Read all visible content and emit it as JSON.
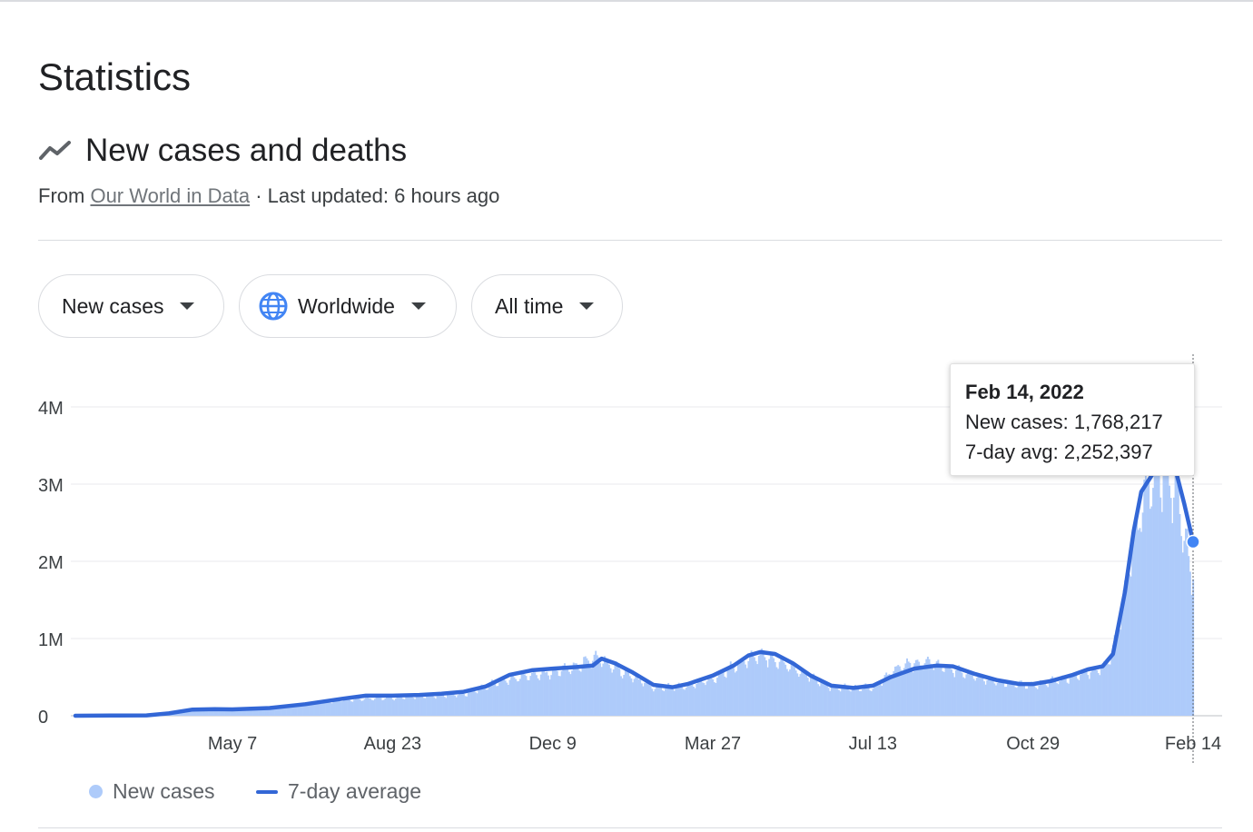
{
  "header": {
    "title": "Statistics",
    "subtitle": "New cases and deaths",
    "source_prefix": "From",
    "source_link": "Our World in Data",
    "updated": "· Last updated: 6 hours ago",
    "trend_icon": "trending-up-icon"
  },
  "filters": {
    "metric": "New cases",
    "region": "Worldwide",
    "range": "All time"
  },
  "legend": {
    "bars": "New cases",
    "line": "7-day average"
  },
  "tooltip": {
    "date": "Feb 14, 2022",
    "cases_label": "New cases:",
    "cases_value": "1,768,217",
    "avg_label": "7-day avg:",
    "avg_value": "2,252,397"
  },
  "colors": {
    "bars": "#aecbfa",
    "line": "#3367d6",
    "marker": "#4285f4",
    "grid": "#e8eaed"
  },
  "chart_data": {
    "type": "bar",
    "title": "New cases and deaths",
    "x_range": [
      "2020-01-22",
      "2022-02-14"
    ],
    "ylim": [
      0,
      4000000
    ],
    "y_ticks": [
      0,
      1000000,
      2000000,
      3000000,
      4000000
    ],
    "y_tick_labels": [
      "0",
      "1M",
      "2M",
      "3M",
      "4M"
    ],
    "x_ticks": [
      {
        "date": "2020-05-07",
        "label": "May 7"
      },
      {
        "date": "2020-08-23",
        "label": "Aug 23"
      },
      {
        "date": "2020-12-09",
        "label": "Dec 9"
      },
      {
        "date": "2021-03-27",
        "label": "Mar 27"
      },
      {
        "date": "2021-07-13",
        "label": "Jul 13"
      },
      {
        "date": "2021-10-29",
        "label": "Oct 29"
      },
      {
        "date": "2022-02-14",
        "label": "Feb 14"
      }
    ],
    "grid": true,
    "legend_position": "bottom-left",
    "series": [
      {
        "name": "7-day average",
        "style": "line",
        "points": [
          [
            "2020-01-22",
            0
          ],
          [
            "2020-02-15",
            2000
          ],
          [
            "2020-03-10",
            5000
          ],
          [
            "2020-03-25",
            30000
          ],
          [
            "2020-04-10",
            80000
          ],
          [
            "2020-04-25",
            85000
          ],
          [
            "2020-05-07",
            82000
          ],
          [
            "2020-06-01",
            100000
          ],
          [
            "2020-06-25",
            150000
          ],
          [
            "2020-07-20",
            220000
          ],
          [
            "2020-08-05",
            260000
          ],
          [
            "2020-08-23",
            260000
          ],
          [
            "2020-09-10",
            270000
          ],
          [
            "2020-09-25",
            285000
          ],
          [
            "2020-10-10",
            310000
          ],
          [
            "2020-10-25",
            380000
          ],
          [
            "2020-11-10",
            530000
          ],
          [
            "2020-11-25",
            590000
          ],
          [
            "2020-12-09",
            610000
          ],
          [
            "2020-12-25",
            630000
          ],
          [
            "2021-01-05",
            650000
          ],
          [
            "2021-01-11",
            740000
          ],
          [
            "2021-01-20",
            680000
          ],
          [
            "2021-02-01",
            560000
          ],
          [
            "2021-02-15",
            400000
          ],
          [
            "2021-02-28",
            370000
          ],
          [
            "2021-03-10",
            410000
          ],
          [
            "2021-03-27",
            520000
          ],
          [
            "2021-04-10",
            650000
          ],
          [
            "2021-04-20",
            780000
          ],
          [
            "2021-04-28",
            825000
          ],
          [
            "2021-05-08",
            800000
          ],
          [
            "2021-05-20",
            680000
          ],
          [
            "2021-06-01",
            520000
          ],
          [
            "2021-06-15",
            390000
          ],
          [
            "2021-06-30",
            360000
          ],
          [
            "2021-07-13",
            390000
          ],
          [
            "2021-07-25",
            500000
          ],
          [
            "2021-08-10",
            610000
          ],
          [
            "2021-08-25",
            650000
          ],
          [
            "2021-09-05",
            640000
          ],
          [
            "2021-09-20",
            540000
          ],
          [
            "2021-10-05",
            460000
          ],
          [
            "2021-10-20",
            410000
          ],
          [
            "2021-10-29",
            410000
          ],
          [
            "2021-11-10",
            450000
          ],
          [
            "2021-11-25",
            530000
          ],
          [
            "2021-12-05",
            600000
          ],
          [
            "2021-12-15",
            640000
          ],
          [
            "2021-12-22",
            800000
          ],
          [
            "2021-12-30",
            1600000
          ],
          [
            "2022-01-05",
            2400000
          ],
          [
            "2022-01-10",
            2900000
          ],
          [
            "2022-01-15",
            3050000
          ],
          [
            "2022-01-20",
            3200000
          ],
          [
            "2022-01-26",
            3320000
          ],
          [
            "2022-02-02",
            3200000
          ],
          [
            "2022-02-08",
            2750000
          ],
          [
            "2022-02-14",
            2252397
          ]
        ]
      },
      {
        "name": "New cases",
        "style": "bar",
        "envelope": [
          [
            "2020-01-22",
            0
          ],
          [
            "2020-03-25",
            40000
          ],
          [
            "2020-04-20",
            90000
          ],
          [
            "2020-06-01",
            110000
          ],
          [
            "2020-07-20",
            240000
          ],
          [
            "2020-08-23",
            270000
          ],
          [
            "2020-10-10",
            330000
          ],
          [
            "2020-11-10",
            560000
          ],
          [
            "2020-12-09",
            650000
          ],
          [
            "2020-12-20",
            700000
          ],
          [
            "2021-01-08",
            880000
          ],
          [
            "2021-01-20",
            720000
          ],
          [
            "2021-02-15",
            420000
          ],
          [
            "2021-03-10",
            440000
          ],
          [
            "2021-03-27",
            560000
          ],
          [
            "2021-04-20",
            850000
          ],
          [
            "2021-04-30",
            900000
          ],
          [
            "2021-05-20",
            720000
          ],
          [
            "2021-06-15",
            420000
          ],
          [
            "2021-07-13",
            420000
          ],
          [
            "2021-08-01",
            750000
          ],
          [
            "2021-08-20",
            800000
          ],
          [
            "2021-09-05",
            690000
          ],
          [
            "2021-10-05",
            500000
          ],
          [
            "2021-10-29",
            450000
          ],
          [
            "2021-11-25",
            580000
          ],
          [
            "2021-12-15",
            720000
          ],
          [
            "2021-12-22",
            950000
          ],
          [
            "2021-12-30",
            1900000
          ],
          [
            "2022-01-05",
            2600000
          ],
          [
            "2022-01-12",
            3300000
          ],
          [
            "2022-01-20",
            3600000
          ],
          [
            "2022-01-26",
            3600000
          ],
          [
            "2022-02-03",
            3300000
          ],
          [
            "2022-02-10",
            2500000
          ],
          [
            "2022-02-14",
            1768217
          ]
        ]
      }
    ],
    "highlight": {
      "date": "2022-02-14",
      "new_cases": 1768217,
      "avg_7day": 2252397
    }
  }
}
